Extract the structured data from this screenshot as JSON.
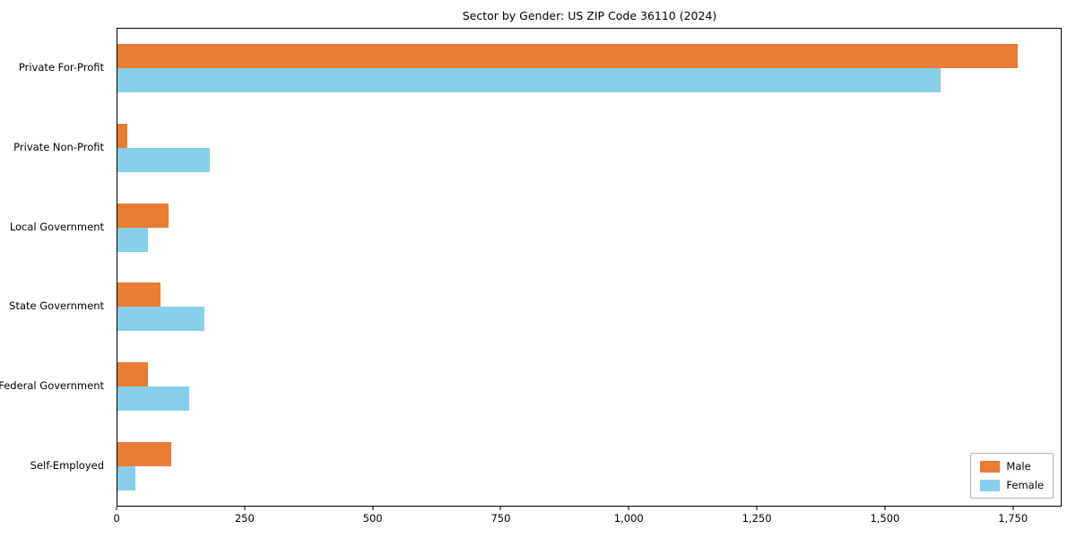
{
  "chart_data": {
    "type": "bar",
    "orientation": "horizontal",
    "title": "Sector by Gender: US ZIP Code 36110 (2024)",
    "categories": [
      "Private For-Profit",
      "Private Non-Profit",
      "Local Government",
      "State Government",
      "Federal Government",
      "Self-Employed"
    ],
    "series": [
      {
        "name": "Male",
        "color": "#e87d33",
        "values": [
          1760,
          20,
          100,
          85,
          60,
          105
        ]
      },
      {
        "name": "Female",
        "color": "#87ceeb",
        "values": [
          1610,
          180,
          60,
          170,
          140,
          35
        ]
      }
    ],
    "xlim": [
      0,
      1845
    ],
    "xticks": [
      0,
      250,
      500,
      750,
      1000,
      1250,
      1500,
      1750
    ],
    "xtick_labels": [
      "0",
      "250",
      "500",
      "750",
      "1,000",
      "1,250",
      "1,500",
      "1,750"
    ],
    "legend_position": "lower right",
    "grid": false,
    "xlabel": "",
    "ylabel": ""
  }
}
